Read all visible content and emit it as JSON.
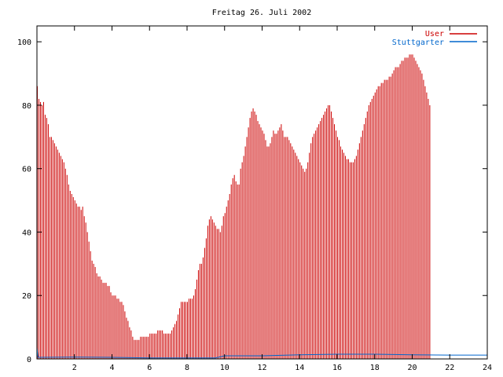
{
  "chart_data": {
    "type": "bar",
    "title": "Freitag 26. Juli 2002",
    "xlabel": "",
    "ylabel": "",
    "xlim": [
      0,
      24
    ],
    "ylim": [
      0,
      105
    ],
    "x_ticks": [
      2,
      4,
      6,
      8,
      10,
      12,
      14,
      16,
      18,
      20,
      22,
      24
    ],
    "y_ticks": [
      0,
      20,
      40,
      60,
      80,
      100
    ],
    "grid": false,
    "legend_position": "top-right",
    "bin_minutes": 5,
    "series": [
      {
        "name": "User",
        "color": "#cc0000",
        "style": "impulses",
        "values": [
          86,
          82,
          81,
          80,
          81,
          77,
          76,
          74,
          70,
          70,
          69,
          68,
          67,
          66,
          65,
          64,
          63,
          62,
          60,
          58,
          55,
          53,
          52,
          51,
          50,
          49,
          48,
          48,
          47,
          48,
          45,
          43,
          40,
          37,
          34,
          31,
          30,
          29,
          27,
          26,
          26,
          25,
          24,
          24,
          24,
          23,
          23,
          21,
          20,
          20,
          20,
          19,
          19,
          18,
          18,
          17,
          15,
          13,
          12,
          10,
          9,
          7,
          6,
          6,
          6,
          6,
          7,
          7,
          7,
          7,
          7,
          7,
          8,
          8,
          8,
          8,
          8,
          9,
          9,
          9,
          9,
          8,
          8,
          8,
          8,
          8,
          9,
          10,
          11,
          12,
          14,
          16,
          18,
          18,
          18,
          18,
          18,
          19,
          19,
          19,
          20,
          22,
          25,
          28,
          30,
          30,
          32,
          35,
          38,
          42,
          44,
          45,
          44,
          43,
          42,
          41,
          41,
          40,
          42,
          45,
          46,
          48,
          50,
          52,
          55,
          57,
          58,
          56,
          55,
          55,
          60,
          62,
          64,
          67,
          70,
          73,
          76,
          78,
          79,
          78,
          77,
          75,
          74,
          73,
          72,
          71,
          69,
          67,
          67,
          68,
          70,
          72,
          71,
          71,
          72,
          73,
          74,
          72,
          70,
          70,
          70,
          69,
          68,
          67,
          66,
          65,
          64,
          63,
          62,
          61,
          60,
          59,
          60,
          62,
          65,
          68,
          70,
          71,
          72,
          73,
          74,
          75,
          76,
          77,
          78,
          79,
          80,
          80,
          78,
          76,
          74,
          72,
          70,
          69,
          67,
          66,
          65,
          64,
          63,
          63,
          62,
          62,
          62,
          63,
          64,
          66,
          68,
          70,
          72,
          74,
          76,
          78,
          80,
          81,
          82,
          83,
          84,
          85,
          86,
          86,
          87,
          87,
          88,
          88,
          88,
          89,
          89,
          90,
          91,
          92,
          92,
          92,
          93,
          94,
          94,
          95,
          95,
          95,
          96,
          96,
          96,
          95,
          94,
          93,
          92,
          91,
          90,
          88,
          86,
          84,
          82,
          80
        ]
      },
      {
        "name": "Stuttgarter",
        "color": "#0066cc",
        "style": "line",
        "points": [
          [
            0,
            3.5
          ],
          [
            0.06,
            0.5
          ],
          [
            2,
            0.6
          ],
          [
            4,
            0.5
          ],
          [
            6,
            0.3
          ],
          [
            8,
            0.3
          ],
          [
            9.5,
            0.3
          ],
          [
            10,
            1.0
          ],
          [
            12,
            1.0
          ],
          [
            14,
            1.3
          ],
          [
            16,
            1.5
          ],
          [
            18,
            1.5
          ],
          [
            20,
            1.3
          ],
          [
            22,
            1.2
          ],
          [
            24,
            1.2
          ]
        ]
      }
    ]
  }
}
